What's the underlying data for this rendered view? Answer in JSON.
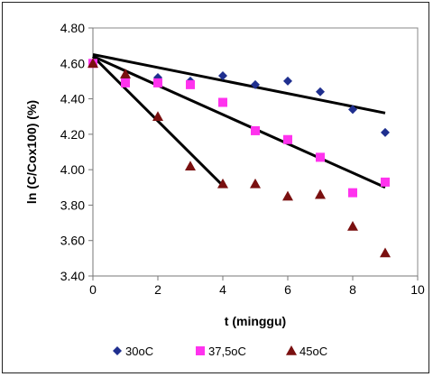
{
  "chart_data": {
    "type": "scatter",
    "title": "",
    "xlabel": "t (minggu)",
    "ylabel": "ln  (C/Cox100) (%)",
    "xlim": [
      0,
      10
    ],
    "ylim": [
      3.4,
      4.8
    ],
    "x_ticks": [
      "0",
      "2",
      "4",
      "6",
      "8",
      "10"
    ],
    "y_ticks": [
      "3.40",
      "3.60",
      "3.80",
      "4.00",
      "4.20",
      "4.40",
      "4.60",
      "4.80"
    ],
    "grid": false,
    "legend_position": "bottom",
    "series": [
      {
        "name": "30oC",
        "marker": "diamond",
        "color": "#1f2f8f",
        "x": [
          0,
          1,
          2,
          3,
          4,
          5,
          6,
          7,
          8,
          9
        ],
        "y": [
          4.6,
          4.51,
          4.52,
          4.5,
          4.53,
          4.48,
          4.5,
          4.44,
          4.34,
          4.21
        ],
        "trendline": {
          "x": [
            0,
            9
          ],
          "y": [
            4.65,
            4.32
          ]
        }
      },
      {
        "name": "37,5oC",
        "marker": "square",
        "color": "#ff33ee",
        "x": [
          0,
          1,
          2,
          3,
          4,
          5,
          6,
          7,
          8,
          9
        ],
        "y": [
          4.6,
          4.49,
          4.49,
          4.48,
          4.38,
          4.22,
          4.17,
          4.07,
          3.87,
          3.93
        ],
        "trendline": {
          "x": [
            0,
            9
          ],
          "y": [
            4.64,
            3.9
          ]
        }
      },
      {
        "name": "45oC",
        "marker": "triangle",
        "color": "#7a1010",
        "x": [
          0,
          1,
          2,
          3,
          4,
          5,
          6,
          7,
          8,
          9
        ],
        "y": [
          4.6,
          4.54,
          4.3,
          4.02,
          3.92,
          3.92,
          3.85,
          3.86,
          3.68,
          3.53
        ],
        "trendline": {
          "x": [
            0,
            4
          ],
          "y": [
            4.64,
            3.91
          ]
        }
      }
    ]
  }
}
